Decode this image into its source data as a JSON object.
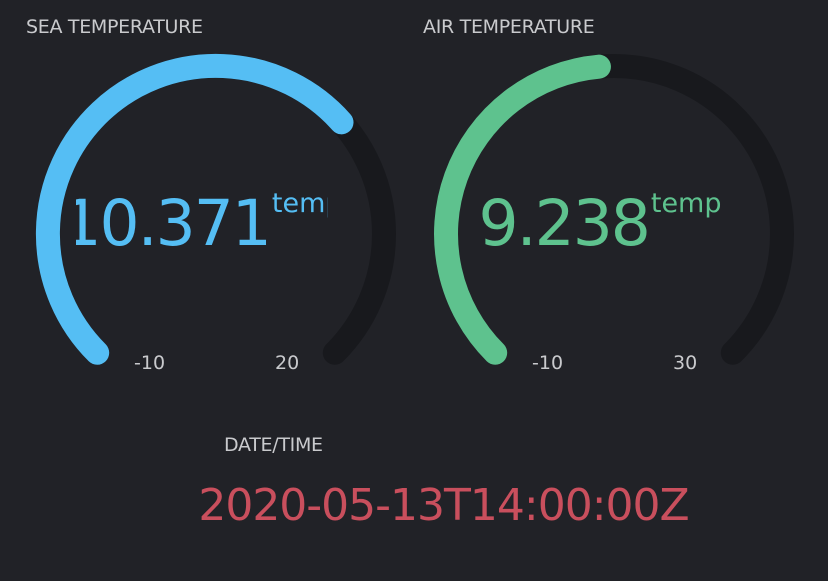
{
  "colors": {
    "background": "#212227",
    "track": "#18191d",
    "label_text": "#c9cacd",
    "sea_accent": "#55bef4",
    "air_accent": "#5ec28e",
    "datetime_accent": "#c94f5d"
  },
  "gauges": [
    {
      "label": "SEA TEMPERATURE",
      "value": "10.371",
      "numeric_value": 10.371,
      "unit": "temp",
      "min": -10,
      "max": 20,
      "min_label": "-10",
      "max_label": "20",
      "color": "#55bef4"
    },
    {
      "label": "AIR TEMPERATURE",
      "value": "9.238",
      "numeric_value": 9.238,
      "unit": "temp",
      "min": -10,
      "max": 30,
      "min_label": "-10",
      "max_label": "30",
      "color": "#5ec28e"
    }
  ],
  "datetime": {
    "label": "DATE/TIME",
    "value": "2020-05-13T14:00:00Z"
  }
}
